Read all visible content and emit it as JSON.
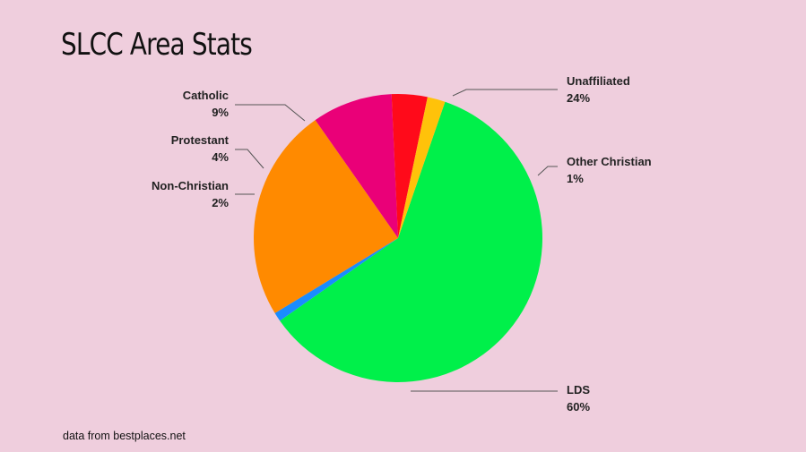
{
  "slide": {
    "title": "SLCC Area Stats",
    "source": "data from bestplaces.net"
  },
  "chart_data": {
    "type": "pie",
    "slices": [
      {
        "label": "LDS",
        "value": 60,
        "display": "60%",
        "color": "#00f04a"
      },
      {
        "label": "Other Christian",
        "value": 1,
        "display": "1%",
        "color": "#1a8cff"
      },
      {
        "label": "Unaffiliated",
        "value": 24,
        "display": "24%",
        "color": "#ff8a00"
      },
      {
        "label": "Catholic",
        "value": 9,
        "display": "9%",
        "color": "#ea0078"
      },
      {
        "label": "Protestant",
        "value": 4,
        "display": "4%",
        "color": "#ff0a1a"
      },
      {
        "label": "Non-Christian",
        "value": 2,
        "display": "2%",
        "color": "#ffc20a"
      }
    ]
  }
}
